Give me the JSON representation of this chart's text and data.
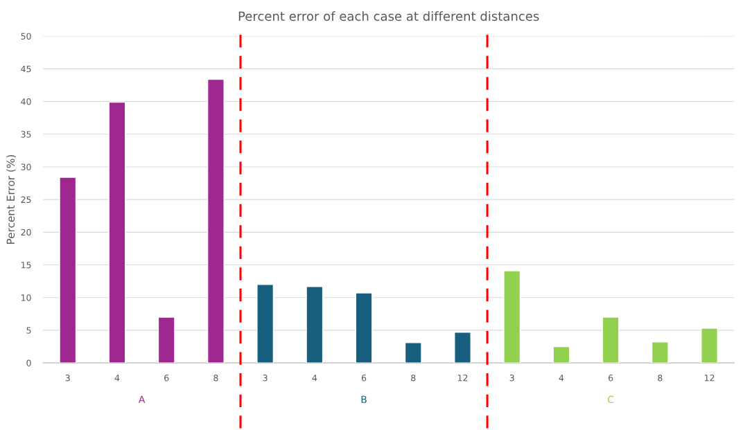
{
  "chart_data": {
    "type": "bar",
    "title": "Percent error of each case at different distances",
    "ylabel": "Percent Error (%)",
    "categories": [
      "3",
      "4",
      "6",
      "8",
      "3",
      "4",
      "6",
      "8",
      "12",
      "3",
      "4",
      "6",
      "8",
      "12"
    ],
    "series": [
      {
        "name": "A",
        "color": "#9e2890",
        "values": [
          28.4,
          39.9,
          7.0,
          43.4,
          null,
          null,
          null,
          null,
          null,
          null,
          null,
          null,
          null,
          null
        ]
      },
      {
        "name": "B",
        "color": "#175e7f",
        "values": [
          null,
          null,
          null,
          null,
          12.0,
          11.7,
          10.7,
          3.1,
          4.7,
          null,
          null,
          null,
          null,
          null
        ]
      },
      {
        "name": "C",
        "color": "#92d050",
        "values": [
          null,
          null,
          null,
          null,
          null,
          null,
          null,
          null,
          null,
          14.1,
          2.5,
          7.0,
          3.2,
          5.3
        ]
      }
    ],
    "ylim": [
      0,
      50
    ],
    "yticks": [
      0,
      5,
      10,
      15,
      20,
      25,
      30,
      35,
      40,
      45,
      50
    ],
    "grid": "y"
  }
}
